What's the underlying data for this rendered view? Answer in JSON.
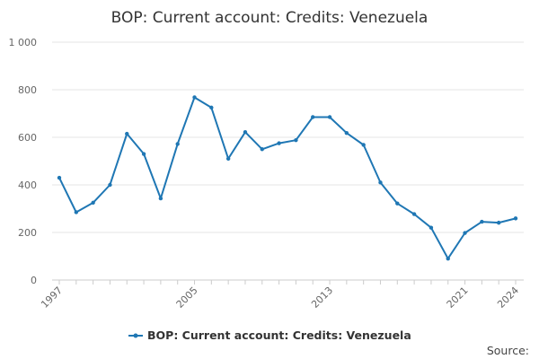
{
  "chart_data": {
    "type": "line",
    "title": "BOP: Current account: Credits: Venezuela",
    "xlabel": "",
    "ylabel": "",
    "ylim": [
      0,
      1000
    ],
    "xlim": [
      1997,
      2024
    ],
    "y_ticks": [
      "0",
      "200",
      "400",
      "600",
      "800",
      "1 000"
    ],
    "y_tick_values": [
      0,
      200,
      400,
      600,
      800,
      1000
    ],
    "x_tick_labels": [
      "1997",
      "2005",
      "2013",
      "2021",
      "2024"
    ],
    "x_tick_values": [
      1997,
      2005,
      2013,
      2021,
      2024
    ],
    "grid": "horizontal",
    "legend_position": "bottom",
    "color": "#1f77b4",
    "series": [
      {
        "name": "BOP: Current account: Credits: Venezuela",
        "x": [
          1997,
          1998,
          1999,
          2000,
          2001,
          2002,
          2003,
          2004,
          2005,
          2006,
          2007,
          2008,
          2009,
          2010,
          2011,
          2012,
          2013,
          2014,
          2015,
          2016,
          2017,
          2018,
          2019,
          2020,
          2021,
          2022,
          2023,
          2024
        ],
        "values": [
          430,
          285,
          325,
          400,
          615,
          530,
          343,
          572,
          768,
          725,
          510,
          622,
          550,
          575,
          588,
          685,
          685,
          618,
          568,
          410,
          322,
          277,
          220,
          90,
          198,
          245,
          241,
          259
        ]
      }
    ]
  },
  "source_label": "Source:"
}
